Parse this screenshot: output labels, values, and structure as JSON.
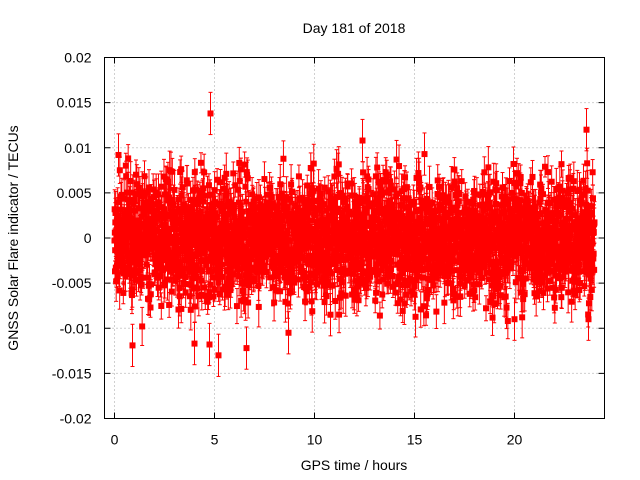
{
  "chart_data": {
    "type": "scatter",
    "title": "Day 181 of 2018",
    "xlabel": "GPS time / hours",
    "ylabel": "GNSS Solar Flare indicator / TECUs",
    "xlim": [
      -0.5,
      24.5
    ],
    "ylim": [
      -0.02,
      0.02
    ],
    "xticks": [
      0,
      5,
      10,
      15,
      20
    ],
    "yticks": [
      -0.02,
      -0.015,
      -0.01,
      -0.005,
      0,
      0.005,
      0.01,
      0.015,
      0.02
    ],
    "ytick_labels": [
      "-0.02",
      "-0.015",
      "-0.01",
      "-0.005",
      "0",
      "0.005",
      "0.01",
      "0.015",
      "0.02"
    ],
    "xtick_labels": [
      "0",
      "5",
      "10",
      "15",
      "20"
    ],
    "grid": true,
    "color": "#ff0000",
    "series": [
      {
        "name": "solar flare indicator",
        "sampling_interval_hours": 0.00833,
        "x_range": [
          0,
          24
        ],
        "y_mean": 0.0,
        "y_spread": 0.0045,
        "error_bar": 0.0018,
        "notable_points": [
          {
            "x": 4.8,
            "y": 0.0138
          },
          {
            "x": 23.6,
            "y": 0.012
          },
          {
            "x": 5.2,
            "y": -0.013
          },
          {
            "x": 6.6,
            "y": -0.0122
          },
          {
            "x": 0.9,
            "y": -0.0119
          },
          {
            "x": 4.0,
            "y": -0.0117
          },
          {
            "x": 4.75,
            "y": -0.0118
          },
          {
            "x": 12.4,
            "y": 0.0108
          },
          {
            "x": 8.7,
            "y": -0.0105
          },
          {
            "x": 20.0,
            "y": -0.009
          },
          {
            "x": 23.7,
            "y": -0.009
          },
          {
            "x": 0.2,
            "y": 0.0092
          },
          {
            "x": 10.8,
            "y": -0.0085
          },
          {
            "x": 15.5,
            "y": 0.0093
          }
        ]
      }
    ]
  }
}
